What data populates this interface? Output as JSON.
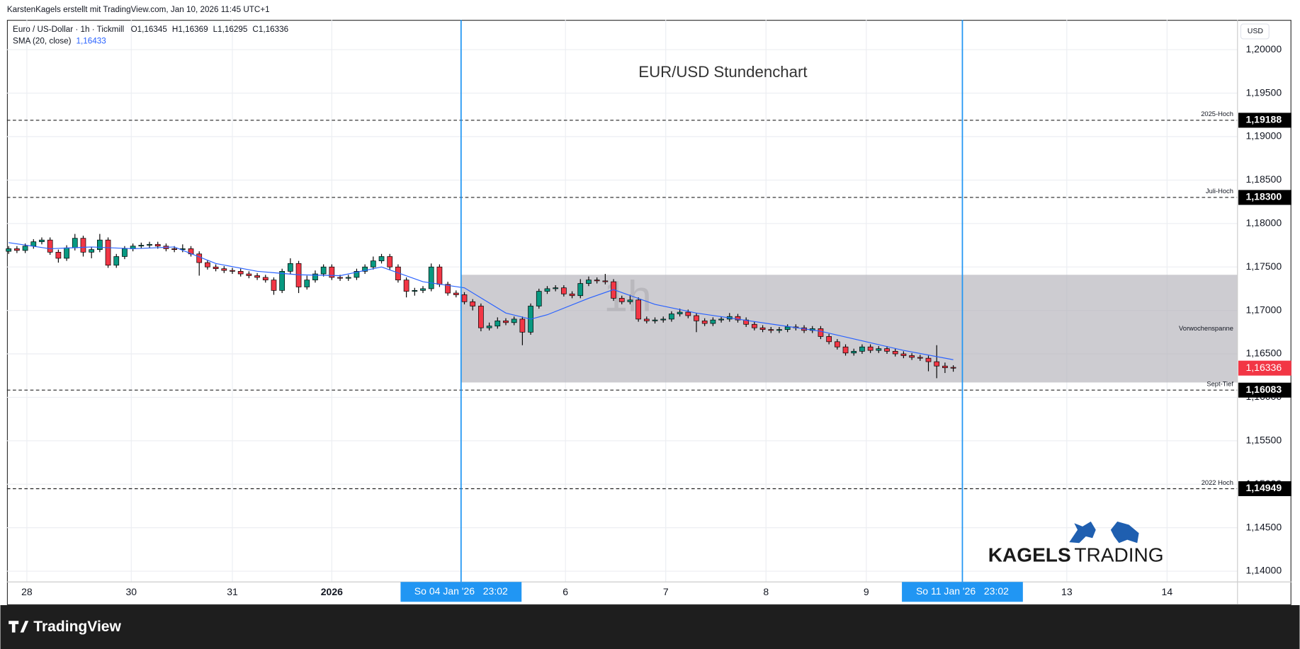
{
  "header": {
    "attribution": "KarstenKagels erstellt mit TradingView.com, Jan 10, 2026 11:45 UTC+1",
    "symbol": "Euro / US-Dollar · 1h · Tickmill",
    "open": "O1,16345",
    "high": "H1,16369",
    "low": "L1,16295",
    "close": "C1,16336",
    "sma_label": "SMA (20, close)",
    "sma_value": "1,16433"
  },
  "footer": {
    "brand": "TradingView"
  },
  "chart_data": {
    "type": "candlestick",
    "title": "EUR/USD Stundenchart",
    "currency": "USD",
    "watermark": "1h",
    "logo": [
      "KAGELS",
      "TRADING"
    ],
    "colors": {
      "up": "#089981",
      "down": "#f23645"
    },
    "candles": [
      [
        1.1768,
        1.1774,
        1.1765,
        1.1771
      ],
      [
        1.1771,
        1.1774,
        1.1766,
        1.1769
      ],
      [
        1.1769,
        1.1777,
        1.1766,
        1.1774
      ],
      [
        1.1774,
        1.1782,
        1.1771,
        1.1779
      ],
      [
        1.1779,
        1.1784,
        1.1776,
        1.1781
      ],
      [
        1.1781,
        1.1784,
        1.1764,
        1.1767
      ],
      [
        1.1767,
        1.177,
        1.1755,
        1.176
      ],
      [
        1.176,
        1.1775,
        1.1757,
        1.1772
      ],
      [
        1.1772,
        1.1788,
        1.1769,
        1.1783
      ],
      [
        1.1783,
        1.1786,
        1.1762,
        1.1767
      ],
      [
        1.1767,
        1.1773,
        1.176,
        1.177
      ],
      [
        1.177,
        1.1788,
        1.1767,
        1.1781
      ],
      [
        1.1781,
        1.1784,
        1.1749,
        1.1752
      ],
      [
        1.1752,
        1.1765,
        1.1749,
        1.1762
      ],
      [
        1.1762,
        1.1774,
        1.1759,
        1.1771
      ],
      [
        1.1771,
        1.1777,
        1.1768,
        1.1774
      ],
      [
        1.1774,
        1.1778,
        1.1771,
        1.1775
      ],
      [
        1.1775,
        1.1779,
        1.1772,
        1.1776
      ],
      [
        1.1776,
        1.1779,
        1.1771,
        1.1774
      ],
      [
        1.1774,
        1.1777,
        1.1768,
        1.1771
      ],
      [
        1.1771,
        1.1774,
        1.1767,
        1.177
      ],
      [
        1.177,
        1.1776,
        1.1767,
        1.1771
      ],
      [
        1.1771,
        1.1774,
        1.1762,
        1.1765
      ],
      [
        1.1765,
        1.1768,
        1.174,
        1.1755
      ],
      [
        1.1755,
        1.1758,
        1.1747,
        1.175
      ],
      [
        1.175,
        1.1753,
        1.1745,
        1.1748
      ],
      [
        1.1748,
        1.1751,
        1.1743,
        1.1746
      ],
      [
        1.1746,
        1.1749,
        1.1742,
        1.1745
      ],
      [
        1.1745,
        1.1748,
        1.1739,
        1.1742
      ],
      [
        1.1742,
        1.1745,
        1.1737,
        1.174
      ],
      [
        1.174,
        1.1743,
        1.1735,
        1.1738
      ],
      [
        1.1738,
        1.1741,
        1.1732,
        1.1735
      ],
      [
        1.1735,
        1.1738,
        1.1718,
        1.1723
      ],
      [
        1.1723,
        1.1748,
        1.172,
        1.1745
      ],
      [
        1.1745,
        1.176,
        1.1742,
        1.1754
      ],
      [
        1.1754,
        1.1757,
        1.172,
        1.1727
      ],
      [
        1.1727,
        1.174,
        1.1724,
        1.1735
      ],
      [
        1.1735,
        1.1746,
        1.1732,
        1.1742
      ],
      [
        1.1742,
        1.1753,
        1.1739,
        1.175
      ],
      [
        1.175,
        1.1753,
        1.1735,
        1.1738
      ],
      [
        1.1738,
        1.1741,
        1.1734,
        1.1737
      ],
      [
        1.1737,
        1.1741,
        1.1734,
        1.1738
      ],
      [
        1.1738,
        1.1748,
        1.1735,
        1.1745
      ],
      [
        1.1745,
        1.1753,
        1.1742,
        1.175
      ],
      [
        1.175,
        1.1762,
        1.1747,
        1.1757
      ],
      [
        1.1757,
        1.1765,
        1.1754,
        1.1762
      ],
      [
        1.1762,
        1.1765,
        1.1747,
        1.175
      ],
      [
        1.175,
        1.1753,
        1.1732,
        1.1735
      ],
      [
        1.1735,
        1.1738,
        1.1715,
        1.1722
      ],
      [
        1.1722,
        1.1726,
        1.1717,
        1.1723
      ],
      [
        1.1723,
        1.1728,
        1.172,
        1.1725
      ],
      [
        1.1725,
        1.1754,
        1.1722,
        1.175
      ],
      [
        1.175,
        1.1753,
        1.1727,
        1.173
      ],
      [
        1.173,
        1.1733,
        1.1717,
        1.172
      ],
      [
        1.172,
        1.1723,
        1.1715,
        1.1718
      ],
      [
        1.1718,
        1.1721,
        1.1707,
        1.171
      ],
      [
        1.171,
        1.1713,
        1.17,
        1.1705
      ],
      [
        1.1705,
        1.1708,
        1.1676,
        1.168
      ],
      [
        1.168,
        1.1686,
        1.1677,
        1.1682
      ],
      [
        1.1682,
        1.1692,
        1.1679,
        1.1688
      ],
      [
        1.1688,
        1.1691,
        1.1683,
        1.1686
      ],
      [
        1.1686,
        1.1693,
        1.1683,
        1.169
      ],
      [
        1.169,
        1.1693,
        1.166,
        1.1675
      ],
      [
        1.1675,
        1.1708,
        1.1672,
        1.1705
      ],
      [
        1.1705,
        1.1725,
        1.1702,
        1.1722
      ],
      [
        1.1722,
        1.1728,
        1.1719,
        1.1725
      ],
      [
        1.1725,
        1.1729,
        1.1722,
        1.1726
      ],
      [
        1.1726,
        1.1729,
        1.1716,
        1.1719
      ],
      [
        1.1719,
        1.1722,
        1.1714,
        1.1717
      ],
      [
        1.1717,
        1.1736,
        1.1714,
        1.1731
      ],
      [
        1.1731,
        1.1739,
        1.1728,
        1.1735
      ],
      [
        1.1735,
        1.1738,
        1.1731,
        1.1734
      ],
      [
        1.1734,
        1.1742,
        1.173,
        1.1733
      ],
      [
        1.1733,
        1.1736,
        1.1711,
        1.1714
      ],
      [
        1.1714,
        1.1717,
        1.1707,
        1.171
      ],
      [
        1.171,
        1.1718,
        1.1707,
        1.1712
      ],
      [
        1.1712,
        1.1715,
        1.1687,
        1.169
      ],
      [
        1.169,
        1.1693,
        1.1685,
        1.1688
      ],
      [
        1.1688,
        1.1692,
        1.1685,
        1.1689
      ],
      [
        1.1689,
        1.1693,
        1.1686,
        1.169
      ],
      [
        1.169,
        1.1699,
        1.1687,
        1.1696
      ],
      [
        1.1696,
        1.1702,
        1.1693,
        1.1698
      ],
      [
        1.1698,
        1.1701,
        1.1691,
        1.1694
      ],
      [
        1.1694,
        1.1697,
        1.1675,
        1.1688
      ],
      [
        1.1688,
        1.1691,
        1.1682,
        1.1685
      ],
      [
        1.1685,
        1.1692,
        1.1682,
        1.1689
      ],
      [
        1.1689,
        1.1693,
        1.1686,
        1.169
      ],
      [
        1.169,
        1.1697,
        1.1687,
        1.1693
      ],
      [
        1.1693,
        1.1696,
        1.1686,
        1.1689
      ],
      [
        1.1689,
        1.1692,
        1.1681,
        1.1684
      ],
      [
        1.1684,
        1.1687,
        1.1677,
        1.168
      ],
      [
        1.168,
        1.1683,
        1.1675,
        1.1678
      ],
      [
        1.1678,
        1.1681,
        1.1674,
        1.1677
      ],
      [
        1.1677,
        1.1681,
        1.1674,
        1.1678
      ],
      [
        1.1678,
        1.1684,
        1.1675,
        1.1681
      ],
      [
        1.1681,
        1.1684,
        1.1677,
        1.168
      ],
      [
        1.168,
        1.1683,
        1.1674,
        1.1677
      ],
      [
        1.1677,
        1.1682,
        1.1674,
        1.1679
      ],
      [
        1.1679,
        1.1682,
        1.1667,
        1.167
      ],
      [
        1.167,
        1.1673,
        1.1661,
        1.1664
      ],
      [
        1.1664,
        1.1667,
        1.1655,
        1.1658
      ],
      [
        1.1658,
        1.1661,
        1.1648,
        1.1651
      ],
      [
        1.1651,
        1.1656,
        1.1648,
        1.1653
      ],
      [
        1.1653,
        1.1661,
        1.165,
        1.1658
      ],
      [
        1.1658,
        1.1661,
        1.1651,
        1.1654
      ],
      [
        1.1654,
        1.1659,
        1.1651,
        1.1656
      ],
      [
        1.1656,
        1.1659,
        1.165,
        1.1653
      ],
      [
        1.1653,
        1.1656,
        1.1647,
        1.165
      ],
      [
        1.165,
        1.1653,
        1.1645,
        1.1648
      ],
      [
        1.1648,
        1.1651,
        1.1643,
        1.1646
      ],
      [
        1.1646,
        1.1649,
        1.1642,
        1.1645
      ],
      [
        1.1645,
        1.1648,
        1.163,
        1.1641
      ],
      [
        1.1641,
        1.166,
        1.1622,
        1.1636
      ],
      [
        1.1636,
        1.164,
        1.1628,
        1.1634
      ],
      [
        1.16345,
        1.16369,
        1.16295,
        1.16336
      ]
    ],
    "sma": {
      "name": "SMA (20, close)",
      "color": "#2962ff",
      "x": [
        0,
        5,
        10,
        15,
        20,
        25,
        30,
        35,
        40,
        45,
        50,
        55,
        60,
        63,
        65,
        70,
        73,
        78,
        83,
        88,
        93,
        98,
        103,
        108,
        114
      ],
      "values": [
        1.1778,
        1.1771,
        1.1773,
        1.1771,
        1.1773,
        1.1754,
        1.1745,
        1.1741,
        1.174,
        1.175,
        1.1733,
        1.1726,
        1.1697,
        1.169,
        1.1695,
        1.1714,
        1.1724,
        1.1707,
        1.1697,
        1.169,
        1.1683,
        1.1676,
        1.1665,
        1.1654,
        1.16433
      ]
    },
    "xlim": [
      -0.2,
      148.3
    ],
    "ylim": [
      1.13876,
      1.20343
    ],
    "yticks": [
      {
        "value": 1.14,
        "label": "1,14000"
      },
      {
        "value": 1.145,
        "label": "1,14500"
      },
      {
        "value": 1.15,
        "label": "1,15000"
      },
      {
        "value": 1.155,
        "label": "1,15500"
      },
      {
        "value": 1.16,
        "label": "1,16000"
      },
      {
        "value": 1.165,
        "label": "1,16500"
      },
      {
        "value": 1.17,
        "label": "1,17000"
      },
      {
        "value": 1.175,
        "label": "1,17500"
      },
      {
        "value": 1.18,
        "label": "1,18000"
      },
      {
        "value": 1.185,
        "label": "1,18500"
      },
      {
        "value": 1.19,
        "label": "1,19000"
      },
      {
        "value": 1.195,
        "label": "1,19500"
      },
      {
        "value": 1.2,
        "label": "1,20000"
      }
    ],
    "xticks": [
      {
        "value": 2.2,
        "label": "28"
      },
      {
        "value": 14.8,
        "label": "30"
      },
      {
        "value": 27,
        "label": "31"
      },
      {
        "value": 39,
        "label": "2026"
      },
      {
        "value": 67.2,
        "label": "6"
      },
      {
        "value": 79.3,
        "label": "7"
      },
      {
        "value": 91.4,
        "label": "8"
      },
      {
        "value": 103.5,
        "label": "9"
      },
      {
        "value": 127.7,
        "label": "13"
      },
      {
        "value": 139.8,
        "label": "14"
      }
    ],
    "grid": true,
    "levels": [
      {
        "value": 1.19188,
        "label": "1,19188",
        "name": "2025-Hoch"
      },
      {
        "value": 1.183,
        "label": "1,18300",
        "name": "Juli-Hoch"
      },
      {
        "value": 1.16083,
        "label": "1,16083",
        "name": "Sept-Tief"
      },
      {
        "value": 1.14949,
        "label": "1,14949",
        "name": "2022 Hoch"
      }
    ],
    "current": {
      "value": 1.16336,
      "label": "1,16336",
      "color": "#f23645"
    },
    "range_box": {
      "label": "Vorwochenspanne",
      "x": 54.6,
      "top": 1.1741,
      "bottom": 1.16171
    },
    "vlines": [
      {
        "value": 54.6,
        "label": "So 04 Jan '26   23:02"
      },
      {
        "value": 115.1,
        "label": "So 11 Jan '26   23:02"
      }
    ]
  }
}
